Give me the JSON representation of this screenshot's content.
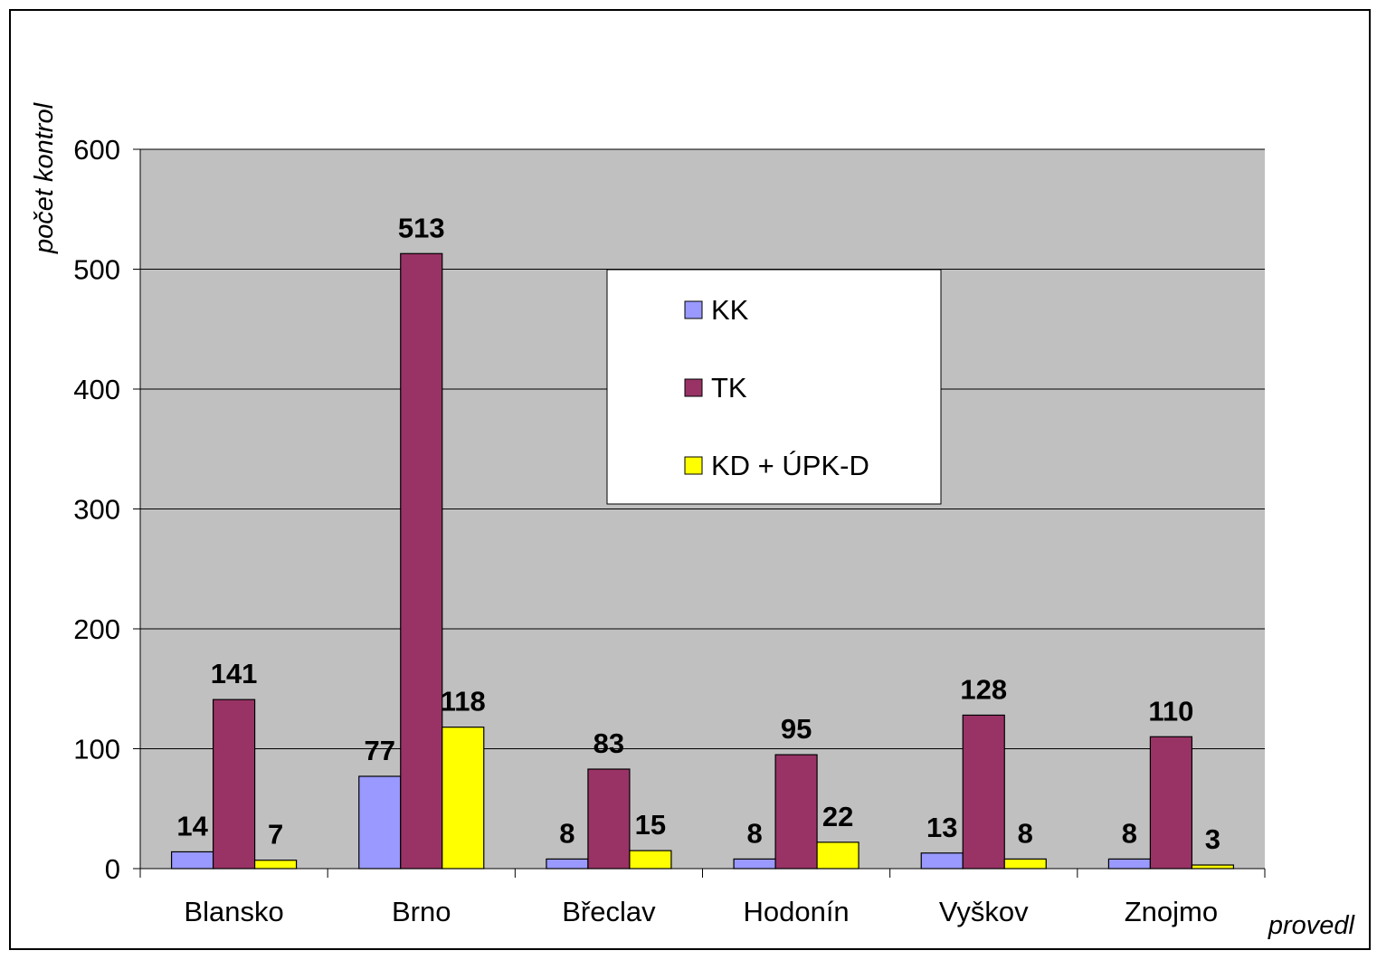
{
  "chart_data": {
    "type": "bar",
    "title": "",
    "xlabel": "provedl",
    "ylabel": "počet kontrol",
    "ylim": [
      0,
      600
    ],
    "yticks": [
      0,
      100,
      200,
      300,
      400,
      500,
      600
    ],
    "grid": true,
    "legend_position": "top-center",
    "categories": [
      "Blansko",
      "Brno",
      "Břeclav",
      "Hodonín",
      "Vyškov",
      "Znojmo"
    ],
    "series": [
      {
        "name": "KK",
        "color": "#9999ff",
        "values": [
          14,
          77,
          8,
          8,
          13,
          8
        ]
      },
      {
        "name": "TK",
        "color": "#993366",
        "values": [
          141,
          513,
          83,
          95,
          128,
          110
        ]
      },
      {
        "name": "KD + ÚPK-D",
        "color": "#ffff00",
        "values": [
          7,
          118,
          15,
          22,
          8,
          3
        ]
      }
    ],
    "plot_background": "#c0c0c0"
  }
}
